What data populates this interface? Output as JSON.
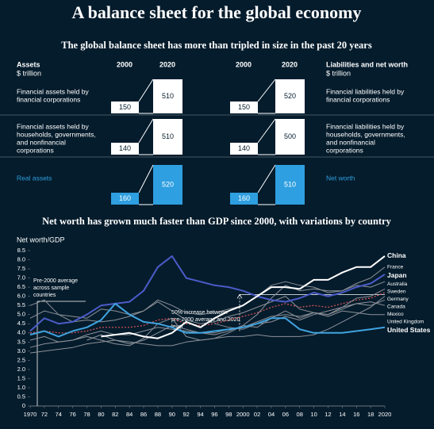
{
  "header": {
    "title": "A balance sheet for the global economy",
    "subtitle": "The global balance sheet has more than tripled in size in the past 20 years"
  },
  "balance_sheet": {
    "years": [
      "2000",
      "2020"
    ],
    "assets": {
      "title": "Assets",
      "unit": "$ trillion",
      "rows": [
        {
          "label": [
            "Financial assets held by",
            "financial corporations"
          ],
          "values": [
            150,
            510
          ]
        },
        {
          "label": [
            "Financial assets held by",
            "households, governments,",
            "and nonfinancial",
            "corporations"
          ],
          "values": [
            140,
            510
          ]
        },
        {
          "label": [
            "Real assets"
          ],
          "values": [
            160,
            520
          ]
        }
      ]
    },
    "liabilities": {
      "title": "Liabilities and net worth",
      "unit": "$ trillion",
      "rows": [
        {
          "label": [
            "Financial liabilities held by",
            "financial corporations"
          ],
          "values": [
            150,
            520
          ]
        },
        {
          "label": [
            "Financial liabilities held by",
            "households, governments,",
            "and nonfinancial",
            "corporations"
          ],
          "values": [
            140,
            500
          ]
        },
        {
          "label": [
            "Net worth"
          ],
          "values": [
            160,
            510
          ]
        }
      ]
    },
    "highlight_color": "#2e9fe0"
  },
  "chart_data": {
    "type": "line",
    "title": "Net worth has grown much faster than GDP since 2000, with variations by country",
    "y_label": "Net worth/GDP",
    "annotations": [
      "Pre-2000 average across sample countries",
      "50% increase between pre-2000 average and 2020 level"
    ],
    "x": [
      1970,
      1972,
      1974,
      1976,
      1978,
      1980,
      1982,
      1984,
      1986,
      1988,
      1990,
      1992,
      1994,
      1996,
      1998,
      2000,
      2002,
      2004,
      2006,
      2008,
      2010,
      2012,
      2014,
      2016,
      2018,
      2020
    ],
    "xlim": [
      1970,
      2020
    ],
    "xticks": [
      1970,
      {
        "value": 1972,
        "label": "72"
      },
      {
        "value": 1974,
        "label": "74"
      },
      {
        "value": 1976,
        "label": "76"
      },
      {
        "value": 1978,
        "label": "78"
      },
      {
        "value": 1980,
        "label": "80"
      },
      {
        "value": 1982,
        "label": "82"
      },
      {
        "value": 1984,
        "label": "84"
      },
      {
        "value": 1986,
        "label": "86"
      },
      {
        "value": 1988,
        "label": "88"
      },
      {
        "value": 1990,
        "label": "90"
      },
      {
        "value": 1992,
        "label": "92"
      },
      {
        "value": 1994,
        "label": "94"
      },
      {
        "value": 1996,
        "label": "96"
      },
      {
        "value": 1998,
        "label": "98"
      },
      2000,
      {
        "value": 2002,
        "label": "02"
      },
      {
        "value": 2004,
        "label": "04"
      },
      {
        "value": 2006,
        "label": "06"
      },
      {
        "value": 2008,
        "label": "08"
      },
      {
        "value": 2010,
        "label": "10"
      },
      {
        "value": 2012,
        "label": "12"
      },
      {
        "value": 2014,
        "label": "14"
      },
      {
        "value": 2016,
        "label": "16"
      },
      {
        "value": 2018,
        "label": "18"
      },
      2020
    ],
    "ylim": [
      0,
      8.5
    ],
    "yticks": [
      0,
      0.5,
      {
        "value": 1,
        "label": "1.0"
      },
      1.5,
      {
        "value": 2,
        "label": "2.0"
      },
      2.5,
      {
        "value": 3,
        "label": "3.0"
      },
      3.5,
      {
        "value": 4,
        "label": "4.0"
      },
      4.5,
      {
        "value": 5,
        "label": "5.0"
      },
      5.5,
      {
        "value": 6,
        "label": "6.0"
      },
      6.5,
      {
        "value": 7,
        "label": "7.0"
      },
      7.5,
      {
        "value": 8,
        "label": "8.0"
      },
      8.5
    ],
    "grid": false,
    "series": [
      {
        "color": "#e05555",
        "dash": true,
        "line_width": 1.2,
        "values": [
          4.0,
          4.1,
          4.0,
          4.0,
          4.1,
          4.3,
          4.3,
          4.3,
          4.4,
          4.7,
          4.8,
          4.5,
          4.4,
          4.5,
          4.7,
          4.9,
          5.1,
          5.4,
          5.6,
          5.4,
          5.5,
          5.4,
          5.6,
          5.8,
          5.9,
          6.2
        ]
      },
      {
        "name": "Germany",
        "color": "#8c9199",
        "line_width": 1,
        "values": [
          2.9,
          3.0,
          3.1,
          3.2,
          3.4,
          3.5,
          3.6,
          3.5,
          3.4,
          3.3,
          3.3,
          3.5,
          3.6,
          3.7,
          3.8,
          3.8,
          3.9,
          3.8,
          3.8,
          3.8,
          3.9,
          4.2,
          4.6,
          5.0,
          5.4,
          6.0
        ]
      },
      {
        "name": "Sweden",
        "color": "#8c9199",
        "line_width": 1,
        "values": [
          3.2,
          3.4,
          3.5,
          3.6,
          3.8,
          3.6,
          3.4,
          3.3,
          3.7,
          4.5,
          4.8,
          3.8,
          3.6,
          3.7,
          4.0,
          4.4,
          4.3,
          4.8,
          5.2,
          4.8,
          5.1,
          5.0,
          5.4,
          5.9,
          6.0,
          6.4
        ]
      },
      {
        "name": "Canada",
        "color": "#8c9199",
        "line_width": 1,
        "values": [
          3.6,
          3.8,
          3.5,
          3.6,
          3.9,
          4.1,
          3.9,
          3.9,
          4.1,
          4.3,
          4.2,
          4.1,
          4.0,
          4.0,
          4.2,
          4.3,
          4.6,
          4.9,
          5.0,
          4.9,
          5.1,
          5.0,
          5.3,
          5.6,
          5.5,
          5.8
        ]
      },
      {
        "name": "Mexico",
        "color": "#8c9199",
        "line_width": 1,
        "values": [
          null,
          null,
          null,
          null,
          null,
          null,
          null,
          null,
          null,
          null,
          null,
          null,
          null,
          4.5,
          4.3,
          4.2,
          4.5,
          4.6,
          4.9,
          4.7,
          5.0,
          5.2,
          5.4,
          5.6,
          5.7,
          5.5
        ]
      },
      {
        "name": "United Kingdom",
        "color": "#8c9199",
        "line_width": 1,
        "values": [
          5.5,
          5.8,
          5.0,
          4.6,
          4.7,
          4.6,
          4.7,
          4.9,
          5.2,
          5.7,
          5.2,
          4.7,
          4.5,
          4.6,
          4.9,
          5.1,
          5.4,
          5.7,
          6.0,
          5.3,
          5.1,
          4.9,
          5.2,
          5.1,
          5.0,
          5.0
        ]
      },
      {
        "name": "Australia",
        "color": "#8c9199",
        "line_width": 1,
        "values": [
          4.8,
          5.2,
          5.0,
          4.9,
          4.8,
          5.3,
          5.2,
          5.0,
          5.2,
          5.8,
          5.5,
          5.1,
          5.0,
          5.1,
          5.3,
          5.5,
          6.0,
          6.6,
          6.8,
          6.6,
          6.5,
          6.2,
          6.3,
          6.6,
          6.5,
          6.8
        ]
      },
      {
        "name": "France",
        "color": "#8c9199",
        "line_width": 1,
        "values": [
          null,
          null,
          null,
          null,
          3.6,
          3.9,
          3.6,
          3.4,
          3.6,
          4.0,
          4.4,
          4.2,
          4.0,
          3.9,
          4.1,
          4.4,
          5.0,
          5.9,
          6.6,
          6.3,
          6.4,
          6.3,
          6.3,
          6.7,
          7.0,
          7.6
        ]
      },
      {
        "name": "Japan",
        "color": "#4b5bc8",
        "line_width": 2,
        "values": [
          4.1,
          4.8,
          4.5,
          4.6,
          5.0,
          5.5,
          5.6,
          5.7,
          6.3,
          7.6,
          8.2,
          7.0,
          6.8,
          6.6,
          6.5,
          6.3,
          6.0,
          5.8,
          5.7,
          5.9,
          6.2,
          6.0,
          6.2,
          6.5,
          6.7,
          7.2
        ]
      },
      {
        "name": "United States",
        "color": "#3fa3e0",
        "line_width": 2,
        "values": [
          3.9,
          4.1,
          3.8,
          4.1,
          4.3,
          4.7,
          5.6,
          5.0,
          4.6,
          4.5,
          4.3,
          4.0,
          4.0,
          4.1,
          4.2,
          4.3,
          4.5,
          4.8,
          4.8,
          4.2,
          4.0,
          4.0,
          4.0,
          4.1,
          4.2,
          4.3
        ]
      },
      {
        "name": "China",
        "color": "#ffffff",
        "line_width": 2,
        "values": [
          null,
          null,
          null,
          null,
          null,
          3.8,
          3.9,
          4.0,
          3.8,
          3.7,
          4.0,
          4.6,
          4.3,
          4.8,
          5.2,
          5.5,
          6.0,
          6.5,
          6.5,
          6.4,
          6.9,
          6.9,
          7.3,
          7.6,
          7.6,
          8.2
        ]
      }
    ]
  }
}
